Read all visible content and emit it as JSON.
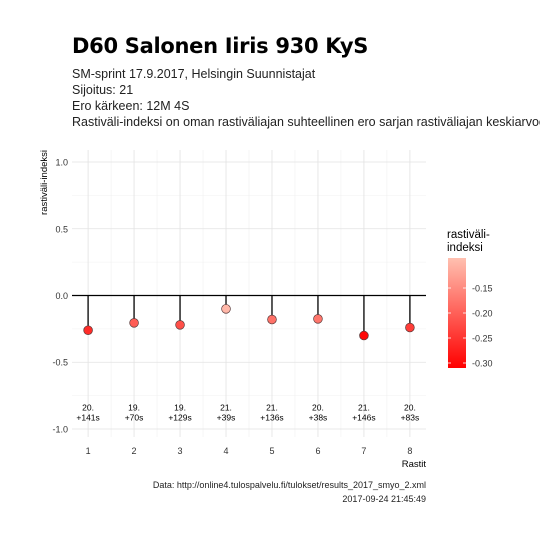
{
  "title": "D60 Salonen Iiris 930 KyS",
  "subtitle_lines": [
    "SM-sprint 17.9.2017, Helsingin Suunnistajat",
    "Sijoitus: 21",
    "Ero kärkeen: 12M 4S",
    "Rastiväli-indeksi on oman rastiväliajan suhteellinen ero sarjan rastiväliajan keskiarvoon"
  ],
  "caption_lines": [
    "Data: http://online4.tulospalvelu.fi/tulokset/results_2017_smyo_2.xml",
    "2017-09-24 21:45:49"
  ],
  "chart_data": {
    "type": "scatter",
    "title": "D60 Salonen Iiris 930 KyS",
    "xlabel": "Rastit",
    "ylabel": "rastiväli-indeksi",
    "x": [
      1,
      2,
      3,
      4,
      5,
      6,
      7,
      8
    ],
    "y": [
      -0.26,
      -0.205,
      -0.22,
      -0.1,
      -0.18,
      -0.175,
      -0.3,
      -0.24
    ],
    "point_labels": [
      "20.\n+141s",
      "19.\n+70s",
      "19.\n+129s",
      "21.\n+39s",
      "21.\n+136s",
      "20.\n+38s",
      "21.\n+146s",
      "20.\n+83s"
    ],
    "ylim": [
      -1.0,
      1.0
    ],
    "yticks": [
      1.0,
      0.5,
      0.0,
      -0.5,
      -1.0
    ],
    "ytick_labels": [
      "1.0",
      "0.5",
      "0.0",
      "-0.5",
      "-1.0"
    ],
    "xticks": [
      1,
      2,
      3,
      4,
      5,
      6,
      7,
      8
    ],
    "xtick_labels": [
      "1",
      "2",
      "3",
      "4",
      "5",
      "6",
      "7",
      "8"
    ],
    "grid": true,
    "reference_line": 0,
    "legend": {
      "title": "rastiväli-\nindeksi",
      "placement": "right",
      "ticks": [
        -0.15,
        -0.2,
        -0.25,
        -0.3
      ],
      "tick_labels": [
        "-0.15",
        "-0.20",
        "-0.25",
        "-0.30"
      ],
      "range": [
        -0.31,
        -0.09
      ],
      "color_low": "#ff0000",
      "color_high": "#ffc0b0"
    }
  }
}
